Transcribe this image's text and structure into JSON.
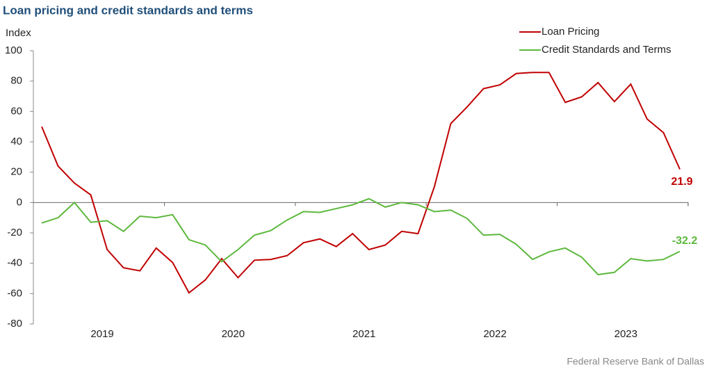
{
  "chart_data": {
    "type": "line",
    "title": "Loan pricing and credit standards and terms",
    "y_label": "Index",
    "source": "Federal Reserve Bank of Dallas",
    "categories": [
      null,
      null,
      null,
      null,
      "2019",
      null,
      null,
      null,
      null,
      null,
      null,
      null,
      "2020",
      null,
      null,
      null,
      null,
      null,
      null,
      null,
      "2021",
      null,
      null,
      null,
      null,
      null,
      null,
      null,
      "2022",
      null,
      null,
      null,
      null,
      null,
      null,
      null,
      "2023",
      null,
      null,
      null
    ],
    "series": [
      {
        "name": "Loan Pricing",
        "color": "#c00000",
        "values": [
          50,
          24,
          12.8,
          5,
          -31,
          -43,
          -45,
          -30,
          -39.5,
          -59.5,
          -51,
          -37,
          -49.5,
          -38,
          -37.5,
          -35,
          -26.5,
          -24,
          -29,
          -20.5,
          -31,
          -28,
          -19,
          -20.5,
          10.5,
          52,
          63,
          75,
          77.5,
          85,
          85.7,
          85.7,
          66,
          69.6,
          79,
          66.5,
          78,
          55,
          46,
          21.9
        ]
      },
      {
        "name": "Credit Standards and Terms",
        "color": "#5cb83c",
        "values": [
          -13.5,
          -10,
          0,
          -13,
          -12,
          -19,
          -9,
          -10,
          -8,
          -24.5,
          -28,
          -39,
          -31,
          -21.5,
          -18.5,
          -11.5,
          -6,
          -6.5,
          -4,
          -1.5,
          2.5,
          -3,
          0,
          -1.5,
          -6,
          -5,
          -10.5,
          -21.5,
          -21,
          -27.5,
          -37.5,
          -32.5,
          -30,
          -36,
          -47.5,
          -46,
          -37,
          -38.5,
          -37.5,
          -32.2
        ]
      }
    ],
    "ylim": [
      -80,
      100
    ],
    "yticks": [
      -80,
      -60,
      -40,
      -20,
      0,
      20,
      40,
      60,
      80,
      100
    ],
    "legend": "top-right"
  }
}
